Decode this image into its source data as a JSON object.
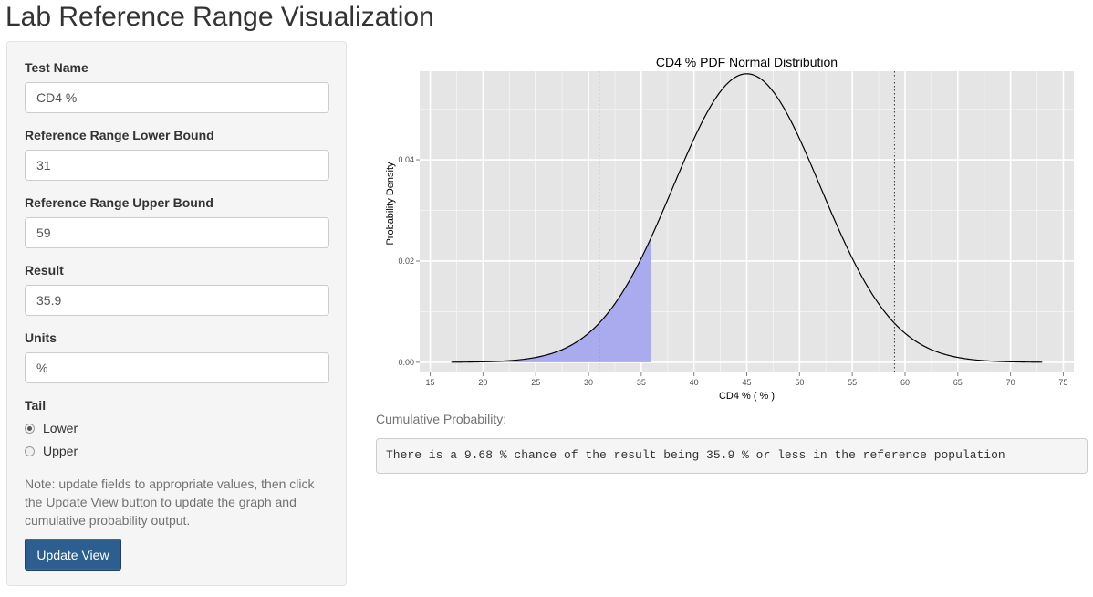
{
  "page": {
    "title": "Lab Reference Range Visualization"
  },
  "form": {
    "test_name": {
      "label": "Test Name",
      "value": "CD4 %"
    },
    "lower_bound": {
      "label": "Reference Range Lower Bound",
      "value": "31"
    },
    "upper_bound": {
      "label": "Reference Range Upper Bound",
      "value": "59"
    },
    "result": {
      "label": "Result",
      "value": "35.9"
    },
    "units": {
      "label": "Units",
      "value": "%"
    },
    "tail": {
      "label": "Tail",
      "options": [
        {
          "label": "Lower",
          "checked": true
        },
        {
          "label": "Upper",
          "checked": false
        }
      ]
    },
    "note": "Note: update fields to appropriate values, then click the Update View button to update the graph and cumulative probability output.",
    "update_button": "Update View"
  },
  "output": {
    "cumulative_label": "Cumulative Probability:",
    "cumulative_text": "There is a 9.68 % chance of the result being 35.9 % or less in the reference population"
  },
  "chart_data": {
    "type": "area",
    "title": "CD4 % PDF Normal Distribution",
    "xlabel": "CD4 % ( % )",
    "ylabel": "Probability Density",
    "xlim": [
      14,
      76
    ],
    "ylim": [
      -0.002,
      0.0575
    ],
    "x_ticks": [
      15,
      20,
      25,
      30,
      35,
      40,
      45,
      50,
      55,
      60,
      65,
      70,
      75
    ],
    "y_ticks": [
      0.0,
      0.02,
      0.04
    ],
    "y_tick_labels": [
      "0.00",
      "0.02",
      "0.04"
    ],
    "distribution": {
      "mean": 45,
      "sd": 7,
      "x_range": [
        17,
        73
      ]
    },
    "reference_lines": [
      31,
      59
    ],
    "shaded_region": {
      "from": 17,
      "to": 35.9
    },
    "colors": {
      "curve": "#000000",
      "shade": "#aaaaee",
      "panel": "#e5e5e5",
      "grid": "#ffffff"
    },
    "grid": true
  }
}
